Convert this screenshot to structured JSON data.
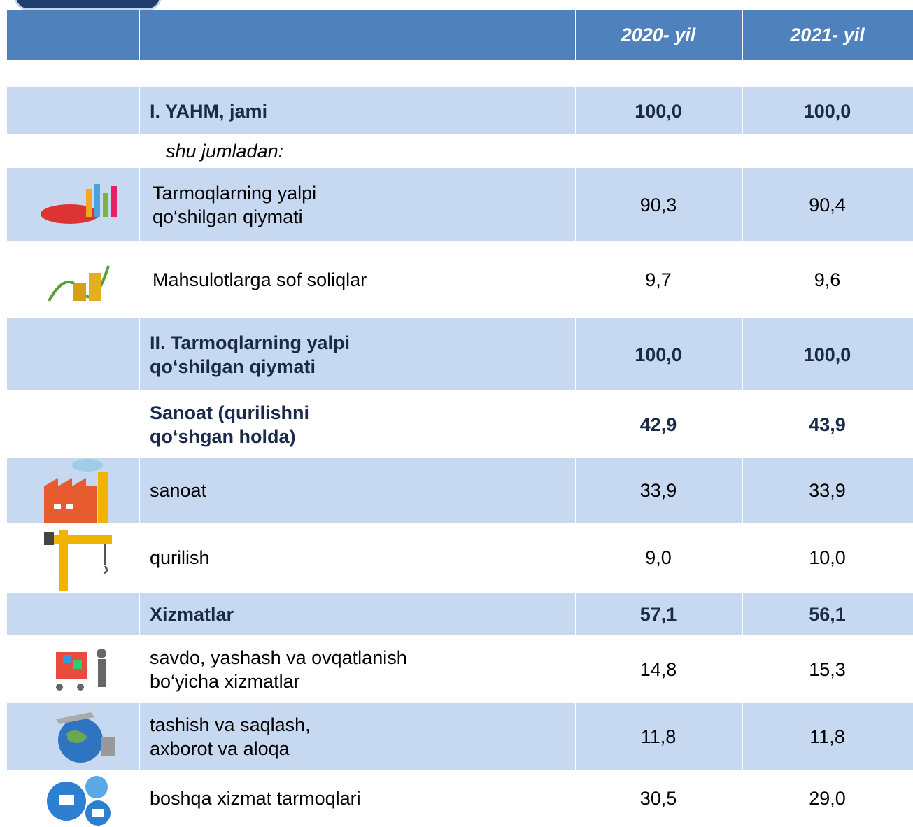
{
  "table": {
    "header": [
      "2020- yil",
      "2021- yil"
    ],
    "rows": [
      {
        "label": "I. YAHM, jami",
        "values": [
          "100,0",
          "100,0"
        ]
      },
      {
        "label": "shu jumladan:"
      },
      {
        "label": "Tarmoqlarning yalpi\nqo‘shilgan qiymati",
        "values": [
          "90,3",
          "90,4"
        ]
      },
      {
        "label": "Mahsulotlarga sof soliqlar",
        "values": [
          "9,7",
          "9,6"
        ]
      },
      {
        "label": "II. Tarmoqlarning yalpi\nqo‘shilgan qiymati",
        "values": [
          "100,0",
          "100,0"
        ]
      },
      {
        "label": "Sanoat (qurilishni\nqo‘shgan holda)",
        "values": [
          "42,9",
          "43,9"
        ]
      },
      {
        "label": "sanoat",
        "values": [
          "33,9",
          "33,9"
        ]
      },
      {
        "label": "qurilish",
        "values": [
          "9,0",
          "10,0"
        ]
      },
      {
        "label": "Xizmatlar",
        "values": [
          "57,1",
          "56,1"
        ]
      },
      {
        "label": "savdo, yashash va ovqatlanish\nbo‘yicha xizmatlar",
        "values": [
          "14,8",
          "15,3"
        ]
      },
      {
        "label": "tashish va saqlash,\naxborot va aloqa",
        "values": [
          "11,8",
          "11,8"
        ]
      },
      {
        "label": "boshqa xizmat tarmoqlari",
        "values": [
          "30,5",
          "29,0"
        ]
      }
    ]
  }
}
